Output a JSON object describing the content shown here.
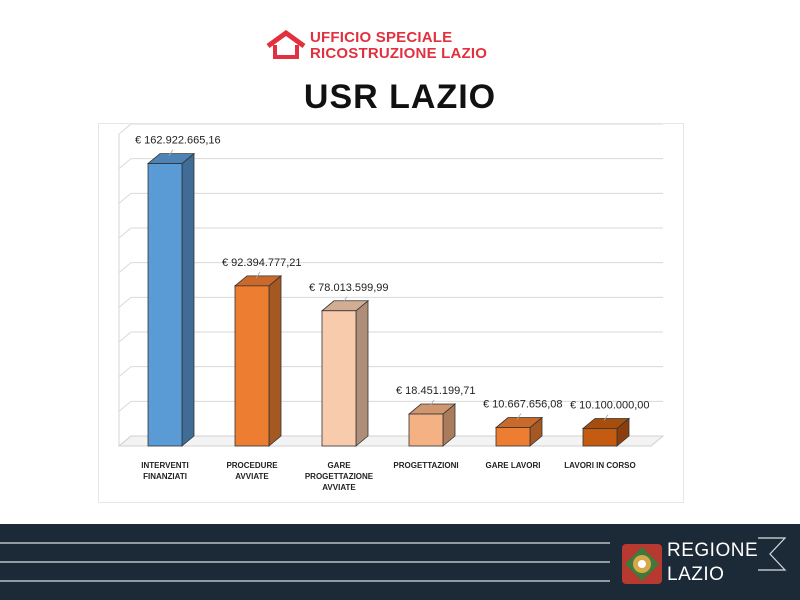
{
  "header": {
    "org_line1": "UFFICIO SPECIALE",
    "org_line2": "RICOSTRUZIONE LAZIO",
    "title": "USR LAZIO",
    "brand_color": "#e2303e"
  },
  "chart_data": {
    "type": "bar",
    "style": "3d-column",
    "categories": [
      [
        "INTERVENTI",
        "FINANZIATI"
      ],
      [
        "PROCEDURE",
        "AVVIATE"
      ],
      [
        "GARE",
        "PROGETTAZIONE",
        "AVVIATE"
      ],
      [
        "PROGETTAZIONI"
      ],
      [
        "GARE LAVORI"
      ],
      [
        "LAVORI IN CORSO"
      ]
    ],
    "values": [
      162922665.16,
      92394777.21,
      78013599.99,
      18451199.71,
      10667656.08,
      10100000.0
    ],
    "data_labels": [
      "€ 162.922.665,16",
      "€ 92.394.777,21",
      "€ 78.013.599,99",
      "€ 18.451.199,71",
      "€ 10.667.656,08",
      "€ 10.100.000,00"
    ],
    "colors": [
      "#5b9bd5",
      "#ed7d31",
      "#f8cbad",
      "#f4b183",
      "#ed7d31",
      "#c55a11"
    ],
    "ylim": [
      0,
      180000000
    ],
    "grid": true,
    "legend": "none"
  },
  "footer": {
    "region_line1": "REGIONE",
    "region_line2": "LAZIO",
    "background": "#1b2a36"
  }
}
